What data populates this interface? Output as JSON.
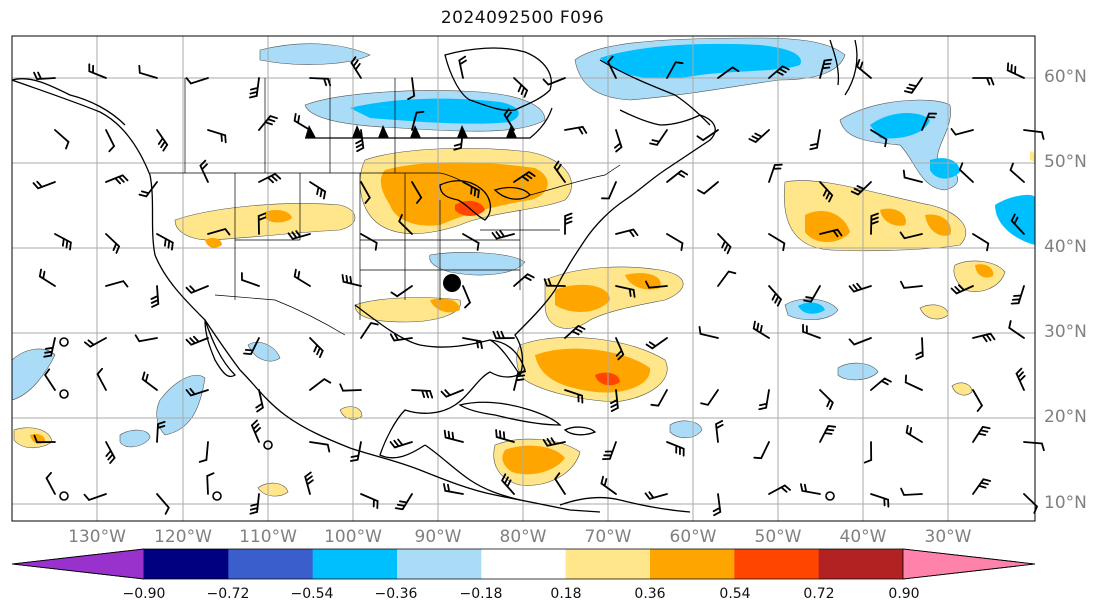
{
  "title": "2024092500 F096",
  "lat_labels": [
    "60°N",
    "50°N",
    "40°N",
    "30°N",
    "20°N",
    "10°N"
  ],
  "lon_labels": [
    "130°W",
    "120°W",
    "110°W",
    "100°W",
    "90°W",
    "80°W",
    "70°W",
    "60°W",
    "50°W",
    "40°W",
    "30°W"
  ],
  "colorbar": {
    "ticks": [
      "−0.90",
      "−0.72",
      "−0.54",
      "−0.36",
      "−0.18",
      "0.18",
      "0.36",
      "0.54",
      "0.72",
      "0.90"
    ],
    "colors": [
      "#9932cc",
      "#000080",
      "#3a5fcd",
      "#00bfff",
      "#aadcf8",
      "#ffffff",
      "#ffe68a",
      "#ffa500",
      "#ff4500",
      "#b22222",
      "#ff82ab"
    ]
  },
  "marker": {
    "type": "black-dot",
    "lon": -88,
    "lat": 35
  },
  "triangles": 6
}
